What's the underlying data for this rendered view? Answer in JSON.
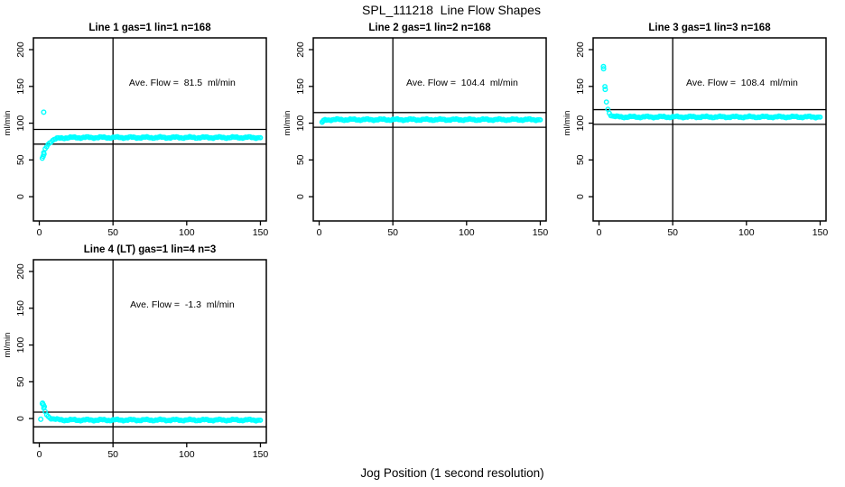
{
  "chart_data": {
    "type": "scatter",
    "title": "SPL_111218  Line Flow Shapes",
    "xlabel": "Jog Position (1 second resolution)",
    "ylabel": "ml/min",
    "x_ticks": [
      0,
      50,
      100,
      150
    ],
    "y_ticks": [
      0,
      50,
      100,
      150,
      200
    ],
    "xlim": [
      -4,
      154
    ],
    "ylim": [
      -33,
      216
    ],
    "grid": false,
    "legend": "none",
    "point_color": "#00ffff",
    "line_color": "#000000",
    "panels": [
      {
        "title": "Line 1 gas=1 lin=1 n=168",
        "annotation": "Ave. Flow =  81.5  ml/min",
        "ave_flow": 81.5,
        "n_points": 168,
        "ref_lines": [
          91.5,
          71.5
        ],
        "vline_x": 50,
        "series": {
          "x_start": 2,
          "x_end": 150,
          "step": 1,
          "start_value": 52,
          "plateau": 80.5,
          "tau": 3.5,
          "extra_points": [
            [
              3,
              115
            ],
            [
              2.6,
              55
            ],
            [
              3.2,
              58
            ]
          ]
        }
      },
      {
        "title": "Line 2 gas=1 lin=2 n=168",
        "annotation": "Ave. Flow =  104.4  ml/min",
        "ave_flow": 104.4,
        "n_points": 168,
        "ref_lines": [
          114.4,
          94.4
        ],
        "vline_x": 50,
        "series": {
          "x_start": 2,
          "x_end": 150,
          "step": 1,
          "start_value": 101,
          "plateau": 104.8,
          "tau": 1.2,
          "extra_points": [
            [
              2,
              101.5
            ],
            [
              2.8,
              103
            ]
          ]
        }
      },
      {
        "title": "Line 3 gas=1 lin=3 n=168",
        "annotation": "Ave. Flow =  108.4  ml/min",
        "ave_flow": 108.4,
        "n_points": 168,
        "ref_lines": [
          118.4,
          98.4
        ],
        "vline_x": 50,
        "series": {
          "x_start": 4,
          "x_end": 150,
          "step": 1,
          "start_value": 149,
          "plateau": 108.5,
          "tau": 1.5,
          "extra_points": [
            [
              3,
              177
            ],
            [
              3.1,
              174
            ],
            [
              4.2,
              146
            ]
          ]
        }
      },
      {
        "title": "Line 4 (LT) gas=1 lin=4 n=3",
        "annotation": "Ave. Flow =  -1.3  ml/min",
        "ave_flow": -1.3,
        "n_points": 3,
        "ref_lines": [
          8.7,
          -11.3
        ],
        "vline_x": 50,
        "series": {
          "x_start": 2,
          "x_end": 150,
          "step": 1,
          "start_value": 20,
          "plateau": -2,
          "tau": 2.8,
          "extra_points": [
            [
              1,
              -1
            ],
            [
              2.2,
              21
            ],
            [
              2.8,
              18.5
            ],
            [
              3.4,
              16
            ]
          ]
        }
      }
    ]
  }
}
